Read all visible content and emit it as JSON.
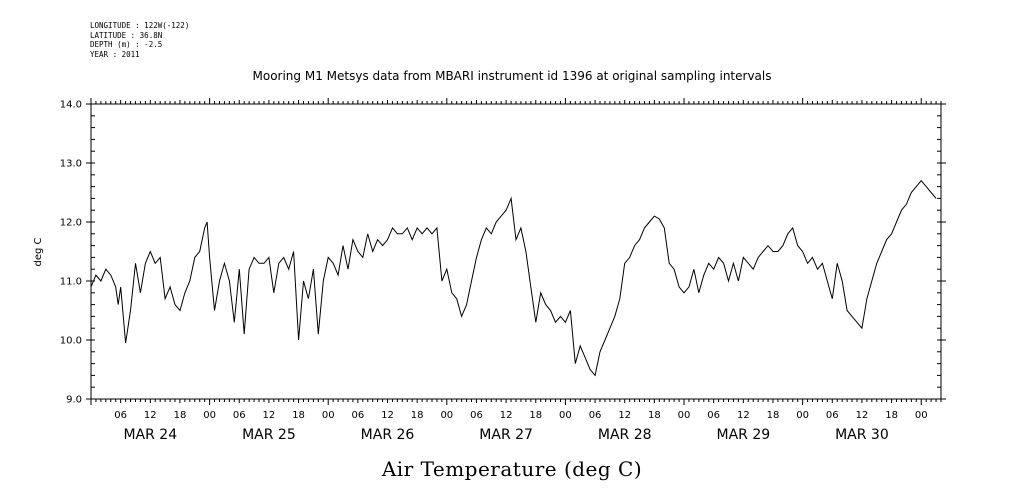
{
  "header": {
    "longitude": "LONGITUDE : 122W(-122)",
    "latitude": "LATITUDE : 36.8N",
    "depth": "DEPTH (m) : -2.5",
    "year": "YEAR : 2011"
  },
  "chart_data": {
    "type": "line",
    "title": "Mooring M1 Metsys data from MBARI instrument id 1396 at original sampling intervals",
    "xlabel": "Air Temperature (deg C)",
    "ylabel": "deg C",
    "ylim": [
      9.0,
      14.0
    ],
    "xlim_hours": [
      0,
      172
    ],
    "yticks": [
      "9.0",
      "10.0",
      "11.0",
      "12.0",
      "13.0",
      "14.0"
    ],
    "xticks_hours": [
      "06",
      "12",
      "18",
      "00",
      "06",
      "12",
      "18",
      "00",
      "06",
      "12",
      "18",
      "00",
      "06",
      "12",
      "18",
      "00",
      "06",
      "12",
      "18",
      "00",
      "06",
      "12",
      "18",
      "00",
      "06",
      "12",
      "18",
      "00"
    ],
    "date_labels": [
      "MAR 24",
      "MAR 25",
      "MAR 26",
      "MAR 27",
      "MAR 28",
      "MAR 29",
      "MAR 30"
    ],
    "grid": false,
    "series": [
      {
        "name": "",
        "color": "#000000",
        "x": [
          0,
          1,
          2,
          3,
          4,
          5,
          5.5,
          6,
          7,
          8,
          9,
          10,
          11,
          12,
          13,
          14,
          15,
          16,
          17,
          18,
          19,
          20,
          21,
          22,
          23,
          23.5,
          24,
          25,
          26,
          27,
          28,
          29,
          30,
          31,
          32,
          33,
          34,
          35,
          36,
          37,
          38,
          39,
          40,
          41,
          42,
          43,
          44,
          45,
          46,
          47,
          48,
          49,
          50,
          51,
          52,
          53,
          54,
          55,
          56,
          57,
          58,
          59,
          60,
          61,
          62,
          63,
          64,
          65,
          66,
          67,
          68,
          69,
          70,
          71,
          72,
          73,
          74,
          75,
          76,
          77,
          78,
          79,
          80,
          81,
          82,
          83,
          84,
          85,
          86,
          87,
          88,
          89,
          90,
          91,
          92,
          93,
          94,
          95,
          96,
          97,
          98,
          99,
          100,
          101,
          102,
          103,
          104,
          105,
          106,
          107,
          108,
          109,
          110,
          111,
          112,
          113,
          114,
          115,
          116,
          117,
          118,
          119,
          120,
          121,
          122,
          123,
          124,
          125,
          126,
          127,
          128,
          129,
          130,
          131,
          132,
          133,
          134,
          135,
          136,
          137,
          138,
          139,
          140,
          141,
          142,
          143,
          144,
          145,
          146,
          147,
          148,
          149,
          150,
          151,
          152,
          153,
          154,
          155,
          156,
          157,
          158,
          159,
          160,
          161,
          162,
          163,
          164,
          165,
          166,
          167,
          168,
          169,
          170,
          171
        ],
        "values": [
          10.9,
          11.1,
          11.0,
          11.2,
          11.1,
          10.9,
          10.6,
          10.9,
          9.95,
          10.5,
          11.3,
          10.8,
          11.3,
          11.5,
          11.3,
          11.4,
          10.7,
          10.9,
          10.6,
          10.5,
          10.8,
          11.0,
          11.4,
          11.5,
          11.9,
          12.0,
          11.4,
          10.5,
          11.0,
          11.3,
          11.0,
          10.3,
          11.2,
          10.1,
          11.2,
          11.4,
          11.3,
          11.3,
          11.4,
          10.8,
          11.3,
          11.4,
          11.2,
          11.5,
          10.0,
          11.0,
          10.7,
          11.2,
          10.1,
          11.0,
          11.4,
          11.3,
          11.1,
          11.6,
          11.2,
          11.7,
          11.5,
          11.4,
          11.8,
          11.5,
          11.7,
          11.6,
          11.7,
          11.9,
          11.8,
          11.8,
          11.9,
          11.7,
          11.9,
          11.8,
          11.9,
          11.8,
          11.9,
          11.0,
          11.2,
          10.8,
          10.7,
          10.4,
          10.6,
          11.0,
          11.4,
          11.7,
          11.9,
          11.8,
          12.0,
          12.1,
          12.2,
          12.4,
          11.7,
          11.9,
          11.5,
          10.9,
          10.3,
          10.8,
          10.6,
          10.5,
          10.3,
          10.4,
          10.3,
          10.5,
          9.6,
          9.9,
          9.7,
          9.5,
          9.4,
          9.8,
          10.0,
          10.2,
          10.4,
          10.7,
          11.3,
          11.4,
          11.6,
          11.7,
          11.9,
          12.0,
          12.1,
          12.05,
          11.9,
          11.3,
          11.2,
          10.9,
          10.8,
          10.9,
          11.2,
          10.8,
          11.1,
          11.3,
          11.2,
          11.4,
          11.3,
          11.0,
          11.3,
          11.0,
          11.4,
          11.3,
          11.2,
          11.4,
          11.5,
          11.6,
          11.5,
          11.5,
          11.6,
          11.8,
          11.9,
          11.6,
          11.5,
          11.3,
          11.4,
          11.2,
          11.3,
          11.0,
          10.7,
          11.3,
          11.0,
          10.5,
          10.4,
          10.3,
          10.2,
          10.7,
          11.0,
          11.3,
          11.5,
          11.7,
          11.8,
          12.0,
          12.2,
          12.3,
          12.5,
          12.6,
          12.7,
          12.6,
          12.5,
          12.4
        ]
      }
    ]
  }
}
